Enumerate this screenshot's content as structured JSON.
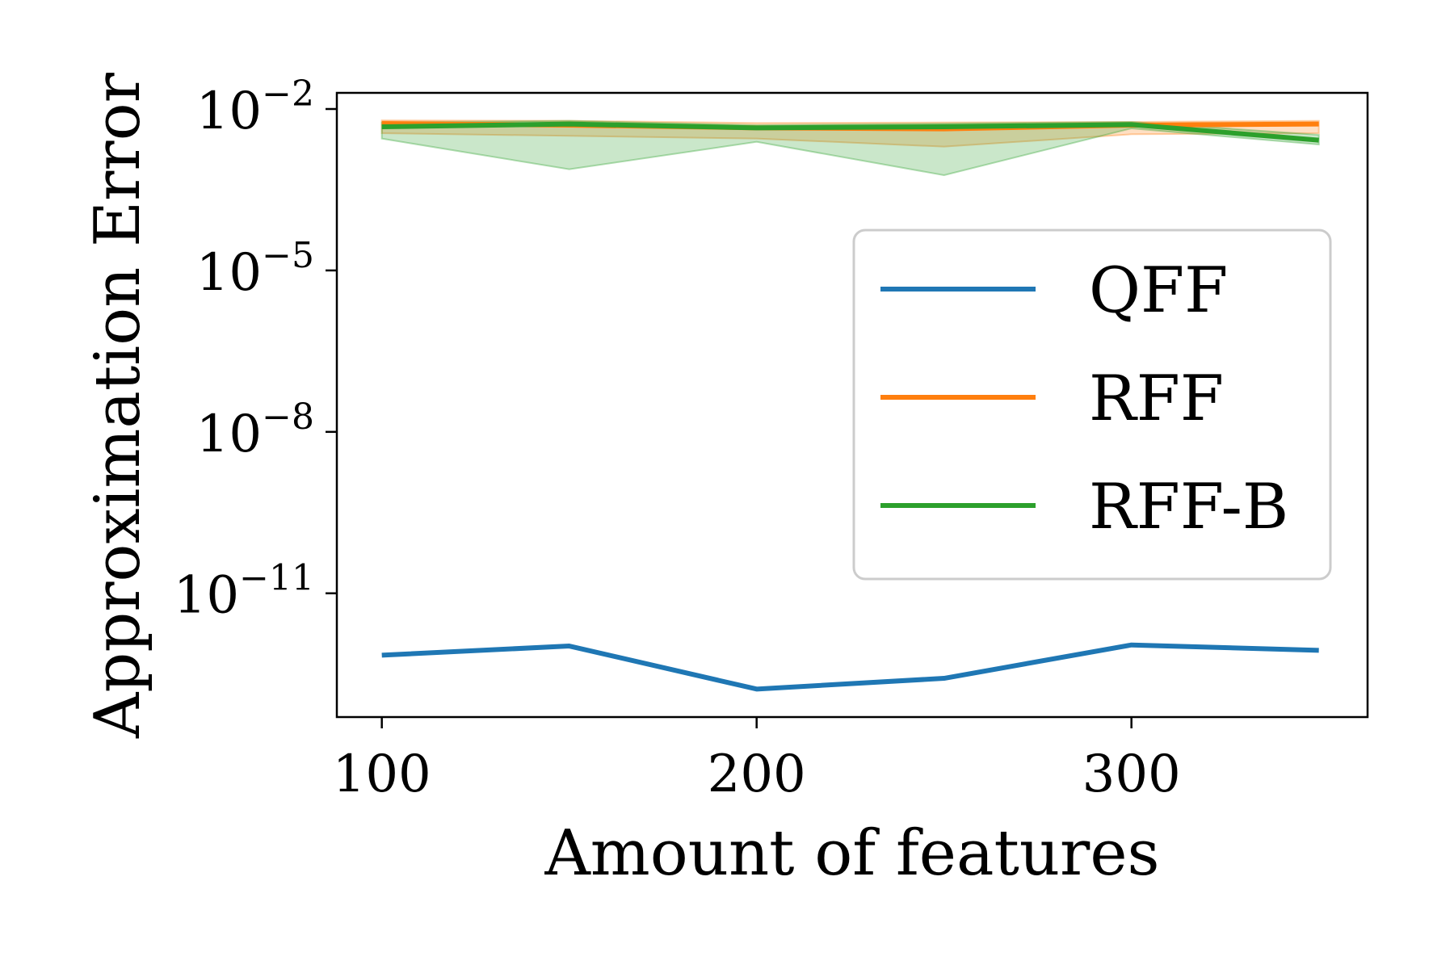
{
  "chart_data": {
    "type": "line",
    "title": "",
    "xlabel": "Amount of features",
    "ylabel": "Approximation Error",
    "x": [
      100,
      150,
      200,
      250,
      300,
      350
    ],
    "xlim": [
      88,
      363
    ],
    "ylim_log10": [
      -13.3,
      -1.7
    ],
    "yscale": "log",
    "xticks": [
      100,
      200,
      300
    ],
    "yticks": [
      {
        "exp": -2,
        "base": "10",
        "sup": "−2"
      },
      {
        "exp": -5,
        "base": "10",
        "sup": "−5"
      },
      {
        "exp": -8,
        "base": "10",
        "sup": "−8"
      },
      {
        "exp": -11,
        "base": "10",
        "sup": "−11"
      }
    ],
    "grid": false,
    "legend_position": "upper-right",
    "series": [
      {
        "name": "QFF",
        "color": "#1f77b4",
        "log10_values": [
          -12.15,
          -11.98,
          -12.78,
          -12.58,
          -11.96,
          -12.06
        ],
        "band_log10": null
      },
      {
        "name": "RFF",
        "color": "#ff7f0e",
        "log10_values": [
          -2.27,
          -2.3,
          -2.35,
          -2.37,
          -2.3,
          -2.28
        ],
        "band_log10": {
          "upper": [
            -2.21,
            -2.22,
            -2.26,
            -2.25,
            -2.24,
            -2.22
          ],
          "lower": [
            -2.45,
            -2.5,
            -2.55,
            -2.7,
            -2.47,
            -2.45
          ]
        }
      },
      {
        "name": "RFF-B",
        "color": "#2ca02c",
        "log10_values": [
          -2.33,
          -2.28,
          -2.35,
          -2.33,
          -2.29,
          -2.58
        ],
        "band_log10": {
          "upper": [
            -2.25,
            -2.22,
            -2.3,
            -2.27,
            -2.24,
            -2.48
          ],
          "lower": [
            -2.55,
            -3.12,
            -2.61,
            -3.23,
            -2.36,
            -2.66
          ]
        }
      }
    ]
  }
}
